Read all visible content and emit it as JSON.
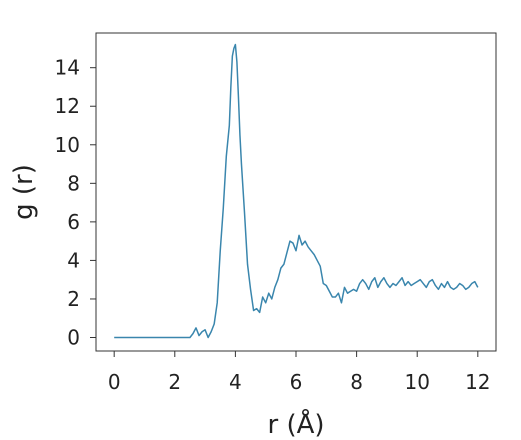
{
  "chart_data": {
    "type": "line",
    "xlabel": "r (Å)",
    "ylabel": "g (r)",
    "xlim": [
      -0.6,
      12.6
    ],
    "ylim": [
      -0.7,
      15.8
    ],
    "xticks": [
      0,
      2,
      4,
      6,
      8,
      10,
      12
    ],
    "yticks": [
      0,
      2,
      4,
      6,
      8,
      10,
      12,
      14
    ],
    "grid": false,
    "colors": {
      "line": "#3a86ad",
      "axes": "#333333"
    },
    "series": [
      {
        "x": [
          0,
          0.5,
          1.0,
          1.5,
          2.0,
          2.5,
          2.6,
          2.7,
          2.8,
          2.9,
          3.0,
          3.1,
          3.2,
          3.3,
          3.4,
          3.5,
          3.6,
          3.7,
          3.8,
          3.85,
          3.9,
          3.95,
          4.0,
          4.05,
          4.1,
          4.15,
          4.2,
          4.3,
          4.4,
          4.5,
          4.6,
          4.7,
          4.8,
          4.9,
          5.0,
          5.1,
          5.2,
          5.3,
          5.4,
          5.5,
          5.6,
          5.7,
          5.8,
          5.9,
          6.0,
          6.1,
          6.2,
          6.3,
          6.4,
          6.5,
          6.6,
          6.7,
          6.8,
          6.9,
          7.0,
          7.1,
          7.2,
          7.3,
          7.4,
          7.5,
          7.6,
          7.7,
          7.8,
          7.9,
          8.0,
          8.1,
          8.2,
          8.3,
          8.4,
          8.5,
          8.6,
          8.7,
          8.8,
          8.9,
          9.0,
          9.1,
          9.2,
          9.3,
          9.4,
          9.5,
          9.6,
          9.7,
          9.8,
          9.9,
          10.0,
          10.1,
          10.2,
          10.3,
          10.4,
          10.5,
          10.6,
          10.7,
          10.8,
          10.9,
          11.0,
          11.1,
          11.2,
          11.3,
          11.4,
          11.5,
          11.6,
          11.7,
          11.8,
          11.9,
          12.0
        ],
        "y": [
          0,
          0,
          0,
          0,
          0,
          0,
          0.2,
          0.5,
          0.1,
          0.3,
          0.4,
          0,
          0.3,
          0.7,
          1.8,
          4.5,
          6.7,
          9.4,
          11.0,
          13.0,
          14.6,
          15.0,
          15.2,
          14.3,
          12.5,
          10.5,
          9.0,
          6.5,
          3.8,
          2.5,
          1.4,
          1.5,
          1.3,
          2.1,
          1.8,
          2.3,
          2.0,
          2.6,
          3.0,
          3.6,
          3.8,
          4.4,
          5.0,
          4.9,
          4.5,
          5.3,
          4.8,
          5.0,
          4.7,
          4.5,
          4.3,
          4.0,
          3.7,
          2.8,
          2.7,
          2.4,
          2.1,
          2.1,
          2.3,
          1.8,
          2.6,
          2.3,
          2.4,
          2.5,
          2.4,
          2.8,
          3.0,
          2.8,
          2.5,
          2.9,
          3.1,
          2.6,
          2.9,
          3.1,
          2.8,
          2.6,
          2.8,
          2.7,
          2.9,
          3.1,
          2.7,
          2.9,
          2.7,
          2.8,
          2.9,
          3.0,
          2.8,
          2.6,
          2.9,
          3.0,
          2.7,
          2.5,
          2.8,
          2.6,
          2.9,
          2.6,
          2.5,
          2.6,
          2.8,
          2.7,
          2.5,
          2.6,
          2.8,
          2.9,
          2.6
        ]
      }
    ]
  }
}
